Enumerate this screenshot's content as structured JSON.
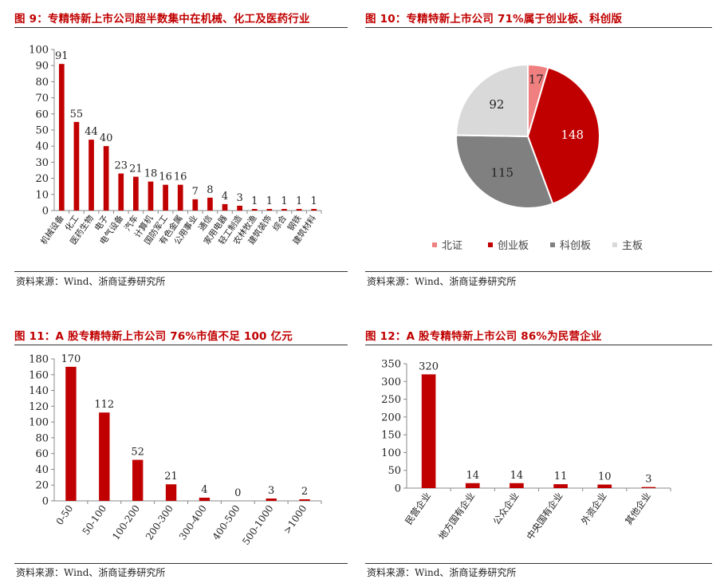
{
  "source_label": "资料来源：Wind、浙商证券研究所",
  "colors": {
    "red": "#c00000",
    "pink": "#f08080",
    "gray": "#808080",
    "lightgray": "#d9d9d9",
    "title": "#c00000"
  },
  "panels": [
    {
      "id": "fig9",
      "title": "图 9：专精特新上市公司超半数集中在机械、化工及医药行业",
      "source": "资料来源：Wind、浙商证券研究所"
    },
    {
      "id": "fig10",
      "title": "图 10：专精特新上市公司 71%属于创业板、科创版",
      "source": "资料来源：Wind、浙商证券研究所"
    },
    {
      "id": "fig11",
      "title": "图 11：A 股专精特新上市公司 76%市值不足 100 亿元",
      "source": "资料来源：Wind、浙商证券研究所"
    },
    {
      "id": "fig12",
      "title": "图 12：A 股专精特新上市公司 86%为民营企业",
      "source": "资料来源：Wind、浙商证券研究所"
    }
  ],
  "chart_data": [
    {
      "type": "bar",
      "categories": [
        "机械设备",
        "化工",
        "医药生物",
        "电子",
        "电气设备",
        "汽车",
        "计算机",
        "国防军工",
        "有色金属",
        "公用事业",
        "通信",
        "家用电器",
        "轻工制造",
        "农林牧渔",
        "建筑装饰",
        "综合",
        "钢铁",
        "建筑材料"
      ],
      "values": [
        91,
        55,
        44,
        40,
        23,
        21,
        18,
        16,
        16,
        7,
        8,
        4,
        3,
        1,
        1,
        1,
        1,
        1
      ],
      "yticks": [
        0,
        10,
        20,
        30,
        40,
        50,
        60,
        70,
        80,
        90,
        100
      ],
      "ylim": [
        0,
        100
      ],
      "grid": false,
      "color": "#c00000"
    },
    {
      "type": "pie",
      "labels": [
        "北证",
        "创业板",
        "科创板",
        "主板"
      ],
      "values": [
        17,
        148,
        115,
        92
      ],
      "colors": [
        "#f08080",
        "#c00000",
        "#808080",
        "#d9d9d9"
      ],
      "legend": "bottom"
    },
    {
      "type": "bar",
      "categories": [
        "0-50",
        "50-100",
        "100-200",
        "200-300",
        "300-400",
        "400-500",
        "500-1000",
        ">1000"
      ],
      "values": [
        170,
        112,
        52,
        21,
        4,
        0,
        3,
        2
      ],
      "yticks": [
        0,
        20,
        40,
        60,
        80,
        100,
        120,
        140,
        160,
        180
      ],
      "ylim": [
        0,
        180
      ],
      "grid": false,
      "color": "#c00000"
    },
    {
      "type": "bar",
      "categories": [
        "民营企业",
        "地方国有企业",
        "公众企业",
        "中央国有企业",
        "外资企业",
        "其他企业"
      ],
      "values": [
        320,
        14,
        14,
        11,
        10,
        3
      ],
      "yticks": [
        0,
        50,
        100,
        150,
        200,
        250,
        300,
        350
      ],
      "ylim": [
        0,
        350
      ],
      "grid": false,
      "color": "#c00000"
    }
  ]
}
